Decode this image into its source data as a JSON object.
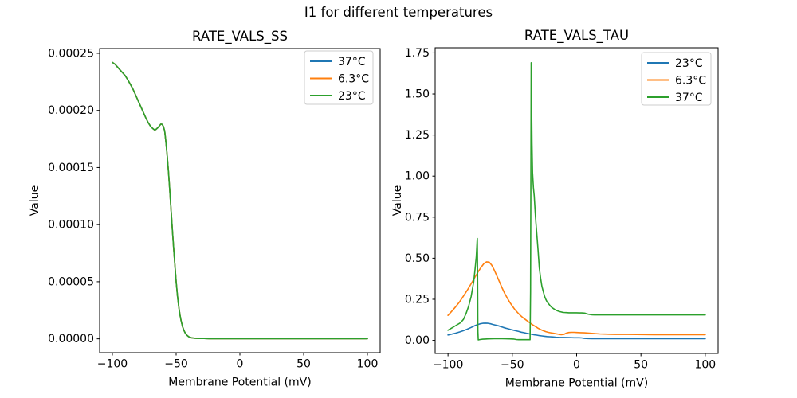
{
  "figure": {
    "suptitle": "I1 for different temperatures",
    "background": "#ffffff"
  },
  "palette": {
    "blue": "#1f77b4",
    "orange": "#ff7f0e",
    "green": "#2ca02c"
  },
  "chart_data": [
    {
      "id": "rate-vals-ss",
      "type": "line",
      "title": "RATE_VALS_SS",
      "xlabel": "Membrane Potential (mV)",
      "ylabel": "Value",
      "xlim": [
        -110,
        110
      ],
      "ylim": [
        -1.21e-05,
        0.00025416
      ],
      "grid": false,
      "legend_position": "upper right",
      "xticks": [
        {
          "v": -100,
          "label": "−100"
        },
        {
          "v": -50,
          "label": "−50"
        },
        {
          "v": 0,
          "label": "0"
        },
        {
          "v": 50,
          "label": "50"
        },
        {
          "v": 100,
          "label": "100"
        }
      ],
      "yticks": [
        {
          "v": 0.0,
          "label": "0.00000"
        },
        {
          "v": 5e-05,
          "label": "0.00005"
        },
        {
          "v": 0.0001,
          "label": "0.00010"
        },
        {
          "v": 0.00015,
          "label": "0.00015"
        },
        {
          "v": 0.0002,
          "label": "0.00020"
        },
        {
          "v": 0.00025,
          "label": "0.00025"
        }
      ],
      "series": [
        {
          "name": "37°C",
          "color": "#1f77b4",
          "curve": "all_temps"
        },
        {
          "name": "6.3°C",
          "color": "#ff7f0e",
          "curve": "all_temps"
        },
        {
          "name": "23°C",
          "color": "#2ca02c",
          "curve": "all_temps"
        }
      ],
      "curves": {
        "all_temps": [
          [
            -100,
            0.000242
          ],
          [
            -98,
            0.0002405
          ],
          [
            -96,
            0.000238
          ],
          [
            -94,
            0.0002355
          ],
          [
            -92,
            0.000233
          ],
          [
            -90,
            0.0002305
          ],
          [
            -88,
            0.000227
          ],
          [
            -86,
            0.000223
          ],
          [
            -84,
            0.000219
          ],
          [
            -82,
            0.000214
          ],
          [
            -80,
            0.000209
          ],
          [
            -78,
            0.000204
          ],
          [
            -76,
            0.000199
          ],
          [
            -74,
            0.000194
          ],
          [
            -72,
            0.0001895
          ],
          [
            -70,
            0.000186
          ],
          [
            -68,
            0.0001838
          ],
          [
            -67,
            0.000183
          ],
          [
            -66,
            0.0001832
          ],
          [
            -64,
            0.0001852
          ],
          [
            -62,
            0.000188
          ],
          [
            -61,
            0.0001878
          ],
          [
            -60,
            0.000186
          ],
          [
            -59,
            0.000182
          ],
          [
            -58,
            0.000172
          ],
          [
            -57,
            0.00016
          ],
          [
            -56,
            0.000146
          ],
          [
            -55,
            0.00013
          ],
          [
            -54,
            0.000113
          ],
          [
            -53,
            9.6e-05
          ],
          [
            -52,
            8e-05
          ],
          [
            -51,
            6.5e-05
          ],
          [
            -50,
            5e-05
          ],
          [
            -49,
            3.8e-05
          ],
          [
            -48,
            2.85e-05
          ],
          [
            -47,
            2.1e-05
          ],
          [
            -46,
            1.52e-05
          ],
          [
            -45,
            1.08e-05
          ],
          [
            -44,
            7.6e-06
          ],
          [
            -43,
            5.3e-06
          ],
          [
            -42,
            3.7e-06
          ],
          [
            -41,
            2.6e-06
          ],
          [
            -40,
            1.8e-06
          ],
          [
            -39,
            1.3e-06
          ],
          [
            -38,
            9e-07
          ],
          [
            -36,
            6e-07
          ],
          [
            -34,
            4e-07
          ],
          [
            -31,
            3e-07
          ],
          [
            -28,
            3e-07
          ],
          [
            -24,
            2e-07
          ],
          [
            -20,
            2e-07
          ],
          [
            -10,
            2e-07
          ],
          [
            0,
            2e-07
          ],
          [
            20,
            2e-07
          ],
          [
            40,
            2e-07
          ],
          [
            60,
            2e-07
          ],
          [
            80,
            2e-07
          ],
          [
            100,
            2e-07
          ]
        ]
      }
    },
    {
      "id": "rate-vals-tau",
      "type": "line",
      "title": "RATE_VALS_TAU",
      "xlabel": "Membrane Potential (mV)",
      "ylabel": "Value",
      "xlim": [
        -110,
        110
      ],
      "ylim": [
        -0.0796,
        1.7812
      ],
      "grid": false,
      "legend_position": "upper right",
      "xticks": [
        {
          "v": -100,
          "label": "−100"
        },
        {
          "v": -50,
          "label": "−50"
        },
        {
          "v": 0,
          "label": "0"
        },
        {
          "v": 50,
          "label": "50"
        },
        {
          "v": 100,
          "label": "100"
        }
      ],
      "yticks": [
        {
          "v": 0.0,
          "label": "0.00"
        },
        {
          "v": 0.25,
          "label": "0.25"
        },
        {
          "v": 0.5,
          "label": "0.50"
        },
        {
          "v": 0.75,
          "label": "0.75"
        },
        {
          "v": 1.0,
          "label": "1.00"
        },
        {
          "v": 1.25,
          "label": "1.25"
        },
        {
          "v": 1.5,
          "label": "1.50"
        },
        {
          "v": 1.75,
          "label": "1.75"
        }
      ],
      "series": [
        {
          "name": "23°C",
          "color": "#1f77b4",
          "curve": "t23"
        },
        {
          "name": "6.3°C",
          "color": "#ff7f0e",
          "curve": "t6"
        },
        {
          "name": "37°C",
          "color": "#2ca02c",
          "curve": "t37"
        }
      ],
      "curves": {
        "t23": [
          [
            -100,
            0.033
          ],
          [
            -97,
            0.038
          ],
          [
            -94,
            0.044
          ],
          [
            -91,
            0.051
          ],
          [
            -88,
            0.059
          ],
          [
            -85,
            0.068
          ],
          [
            -82,
            0.079
          ],
          [
            -79,
            0.09
          ],
          [
            -77,
            0.096
          ],
          [
            -75,
            0.101
          ],
          [
            -73,
            0.104
          ],
          [
            -71,
            0.105
          ],
          [
            -69,
            0.104
          ],
          [
            -67,
            0.101
          ],
          [
            -65,
            0.097
          ],
          [
            -63,
            0.093
          ],
          [
            -61,
            0.089
          ],
          [
            -59,
            0.084
          ],
          [
            -57,
            0.079
          ],
          [
            -55,
            0.074
          ],
          [
            -53,
            0.07
          ],
          [
            -51,
            0.066
          ],
          [
            -49,
            0.062
          ],
          [
            -47,
            0.058
          ],
          [
            -45,
            0.054
          ],
          [
            -43,
            0.05
          ],
          [
            -41,
            0.047
          ],
          [
            -39,
            0.043
          ],
          [
            -37,
            0.04
          ],
          [
            -35,
            0.037
          ],
          [
            -33,
            0.034
          ],
          [
            -31,
            0.032
          ],
          [
            -29,
            0.029
          ],
          [
            -27,
            0.027
          ],
          [
            -25,
            0.025
          ],
          [
            -23,
            0.023
          ],
          [
            -21,
            0.022
          ],
          [
            -19,
            0.021
          ],
          [
            -16,
            0.019
          ],
          [
            -13,
            0.018
          ],
          [
            -10,
            0.018
          ],
          [
            -6,
            0.017
          ],
          [
            -2,
            0.016
          ],
          [
            2,
            0.016
          ],
          [
            4,
            0.015
          ],
          [
            6,
            0.012
          ],
          [
            9,
            0.011
          ],
          [
            12,
            0.01
          ],
          [
            20,
            0.01
          ],
          [
            40,
            0.01
          ],
          [
            60,
            0.01
          ],
          [
            80,
            0.01
          ],
          [
            100,
            0.01
          ]
        ],
        "t6": [
          [
            -100,
            0.152
          ],
          [
            -97,
            0.178
          ],
          [
            -94,
            0.205
          ],
          [
            -91,
            0.235
          ],
          [
            -88,
            0.27
          ],
          [
            -85,
            0.305
          ],
          [
            -82,
            0.345
          ],
          [
            -79,
            0.385
          ],
          [
            -76,
            0.425
          ],
          [
            -74,
            0.448
          ],
          [
            -72,
            0.468
          ],
          [
            -70,
            0.478
          ],
          [
            -68,
            0.476
          ],
          [
            -66,
            0.458
          ],
          [
            -64,
            0.428
          ],
          [
            -62,
            0.392
          ],
          [
            -60,
            0.356
          ],
          [
            -58,
            0.32
          ],
          [
            -56,
            0.287
          ],
          [
            -54,
            0.258
          ],
          [
            -52,
            0.232
          ],
          [
            -50,
            0.209
          ],
          [
            -48,
            0.188
          ],
          [
            -46,
            0.17
          ],
          [
            -44,
            0.154
          ],
          [
            -42,
            0.14
          ],
          [
            -40,
            0.128
          ],
          [
            -38,
            0.116
          ],
          [
            -36,
            0.105
          ],
          [
            -34,
            0.094
          ],
          [
            -32,
            0.084
          ],
          [
            -30,
            0.074
          ],
          [
            -28,
            0.066
          ],
          [
            -26,
            0.059
          ],
          [
            -24,
            0.053
          ],
          [
            -22,
            0.049
          ],
          [
            -20,
            0.046
          ],
          [
            -18,
            0.043
          ],
          [
            -16,
            0.04
          ],
          [
            -14,
            0.037
          ],
          [
            -12,
            0.035
          ],
          [
            -10,
            0.036
          ],
          [
            -8,
            0.044
          ],
          [
            -6,
            0.048
          ],
          [
            -4,
            0.049
          ],
          [
            -2,
            0.049
          ],
          [
            0,
            0.048
          ],
          [
            3,
            0.047
          ],
          [
            6,
            0.046
          ],
          [
            10,
            0.044
          ],
          [
            14,
            0.041
          ],
          [
            18,
            0.039
          ],
          [
            22,
            0.038
          ],
          [
            26,
            0.037
          ],
          [
            30,
            0.036
          ],
          [
            40,
            0.036
          ],
          [
            60,
            0.035
          ],
          [
            80,
            0.035
          ],
          [
            100,
            0.035
          ]
        ],
        "t37": [
          [
            -100,
            0.062
          ],
          [
            -97,
            0.076
          ],
          [
            -94,
            0.09
          ],
          [
            -91,
            0.104
          ],
          [
            -90,
            0.11
          ],
          [
            -88,
            0.128
          ],
          [
            -86,
            0.162
          ],
          [
            -84,
            0.208
          ],
          [
            -82,
            0.268
          ],
          [
            -80,
            0.358
          ],
          [
            -79,
            0.43
          ],
          [
            -78,
            0.51
          ],
          [
            -77.4,
            0.6
          ],
          [
            -77.2,
            0.62
          ],
          [
            -77,
            0.35
          ],
          [
            -76.8,
            0.06
          ],
          [
            -76.5,
            0.003
          ],
          [
            -75,
            0.005
          ],
          [
            -73,
            0.007
          ],
          [
            -71,
            0.008
          ],
          [
            -69,
            0.009
          ],
          [
            -64,
            0.01
          ],
          [
            -58,
            0.01
          ],
          [
            -52,
            0.009
          ],
          [
            -49,
            0.008
          ],
          [
            -47,
            0.005
          ],
          [
            -45,
            0.004
          ],
          [
            -42,
            0.004
          ],
          [
            -39,
            0.004
          ],
          [
            -36.2,
            0.004
          ],
          [
            -35.8,
            0.3
          ],
          [
            -35.5,
            1.2
          ],
          [
            -35.3,
            1.69
          ],
          [
            -35,
            1.45
          ],
          [
            -34.7,
            1.2
          ],
          [
            -34.3,
            1.02
          ],
          [
            -33.6,
            0.93
          ],
          [
            -33,
            0.88
          ],
          [
            -32,
            0.75
          ],
          [
            -31,
            0.65
          ],
          [
            -30,
            0.55
          ],
          [
            -29,
            0.44
          ],
          [
            -28,
            0.38
          ],
          [
            -27,
            0.33
          ],
          [
            -26,
            0.3
          ],
          [
            -25,
            0.27
          ],
          [
            -24,
            0.25
          ],
          [
            -23,
            0.235
          ],
          [
            -22,
            0.225
          ],
          [
            -21,
            0.215
          ],
          [
            -20,
            0.206
          ],
          [
            -19,
            0.199
          ],
          [
            -18,
            0.193
          ],
          [
            -17,
            0.188
          ],
          [
            -16,
            0.184
          ],
          [
            -15,
            0.18
          ],
          [
            -14,
            0.177
          ],
          [
            -13,
            0.175
          ],
          [
            -12,
            0.173
          ],
          [
            -11,
            0.171
          ],
          [
            -10,
            0.17
          ],
          [
            -8,
            0.169
          ],
          [
            -6,
            0.168
          ],
          [
            -4,
            0.168
          ],
          [
            -2,
            0.168
          ],
          [
            0,
            0.168
          ],
          [
            2,
            0.167
          ],
          [
            4,
            0.167
          ],
          [
            6,
            0.166
          ],
          [
            7,
            0.164
          ],
          [
            8,
            0.161
          ],
          [
            10,
            0.158
          ],
          [
            12,
            0.156
          ],
          [
            14,
            0.155
          ],
          [
            18,
            0.155
          ],
          [
            30,
            0.155
          ],
          [
            50,
            0.155
          ],
          [
            70,
            0.155
          ],
          [
            100,
            0.155
          ]
        ]
      }
    }
  ]
}
